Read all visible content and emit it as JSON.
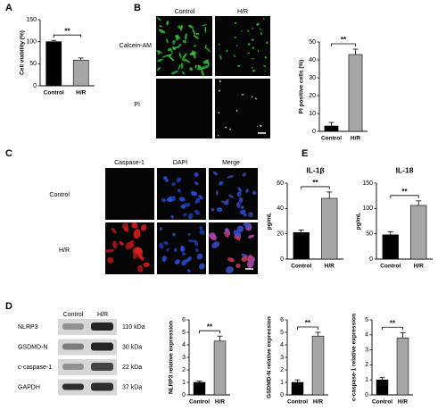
{
  "panel_labels": [
    "A",
    "B",
    "C",
    "D",
    "E"
  ],
  "panel_b": {
    "columns": [
      "Control",
      "H/R"
    ],
    "rows": [
      "Calcein-AM",
      "PI"
    ]
  },
  "panel_c": {
    "columns": [
      "Caspase-1",
      "DAPI",
      "Merge"
    ],
    "rows": [
      "Control",
      "H/R"
    ]
  },
  "panel_d_blot": {
    "columns": [
      "Control",
      "H/R"
    ],
    "rows": [
      "NLRP3",
      "GSDMD-N",
      "c-caspase-1",
      "GAPDH"
    ],
    "sizes": [
      "110 kDa",
      "30 kDa",
      "22 kDa",
      "37 kDa"
    ]
  },
  "chart_data": [
    {
      "type": "bar",
      "ylabel": "Cell viability (%)",
      "categories": [
        "Control",
        "H/R"
      ],
      "values": [
        100,
        58
      ],
      "errors": [
        3,
        5
      ],
      "colors": [
        "#000000",
        "#a6a6a6"
      ],
      "ylim": [
        0,
        150
      ],
      "yticks": [
        0,
        50,
        100,
        150
      ],
      "annotation": "**"
    },
    {
      "type": "bar",
      "ylabel": "PI positive cells (%)",
      "categories": [
        "Control",
        "H/R"
      ],
      "values": [
        3,
        43
      ],
      "errors": [
        2,
        3
      ],
      "colors": [
        "#000000",
        "#a6a6a6"
      ],
      "ylim": [
        0,
        50
      ],
      "yticks": [
        0,
        10,
        20,
        30,
        40,
        50
      ],
      "annotation": "**"
    },
    {
      "type": "bar",
      "title": "IL-1β",
      "ylabel": "pg/mL",
      "categories": [
        "Control",
        "H/R"
      ],
      "values": [
        21,
        48
      ],
      "errors": [
        2,
        5
      ],
      "colors": [
        "#000000",
        "#a6a6a6"
      ],
      "ylim": [
        0,
        60
      ],
      "yticks": [
        0,
        20,
        40,
        60
      ],
      "annotation": "**"
    },
    {
      "type": "bar",
      "title": "IL-18",
      "ylabel": "pg/mL",
      "categories": [
        "Control",
        "H/R"
      ],
      "values": [
        48,
        106
      ],
      "errors": [
        6,
        9
      ],
      "colors": [
        "#000000",
        "#a6a6a6"
      ],
      "ylim": [
        0,
        150
      ],
      "yticks": [
        0,
        50,
        100,
        150
      ],
      "annotation": "**"
    },
    {
      "type": "bar",
      "ylabel": "NLRP3 relative expression",
      "categories": [
        "Control",
        "H/R"
      ],
      "values": [
        1,
        4.3
      ],
      "errors": [
        0.1,
        0.4
      ],
      "colors": [
        "#000000",
        "#a6a6a6"
      ],
      "ylim": [
        0,
        6
      ],
      "yticks": [
        0,
        1,
        2,
        3,
        4,
        5,
        6
      ],
      "annotation": "**"
    },
    {
      "type": "bar",
      "ylabel": "GSDMD-N relative expression",
      "categories": [
        "Control",
        "H/R"
      ],
      "values": [
        1,
        4.7
      ],
      "errors": [
        0.2,
        0.3
      ],
      "colors": [
        "#000000",
        "#a6a6a6"
      ],
      "ylim": [
        0,
        6
      ],
      "yticks": [
        0,
        1,
        2,
        3,
        4,
        5,
        6
      ],
      "annotation": "**"
    },
    {
      "type": "bar",
      "ylabel": "c-caspase-1 relative expression",
      "categories": [
        "Control",
        "H/R"
      ],
      "values": [
        1,
        3.8
      ],
      "errors": [
        0.15,
        0.35
      ],
      "colors": [
        "#000000",
        "#a6a6a6"
      ],
      "ylim": [
        0,
        5
      ],
      "yticks": [
        0,
        1,
        2,
        3,
        4,
        5
      ],
      "annotation": "**"
    }
  ]
}
